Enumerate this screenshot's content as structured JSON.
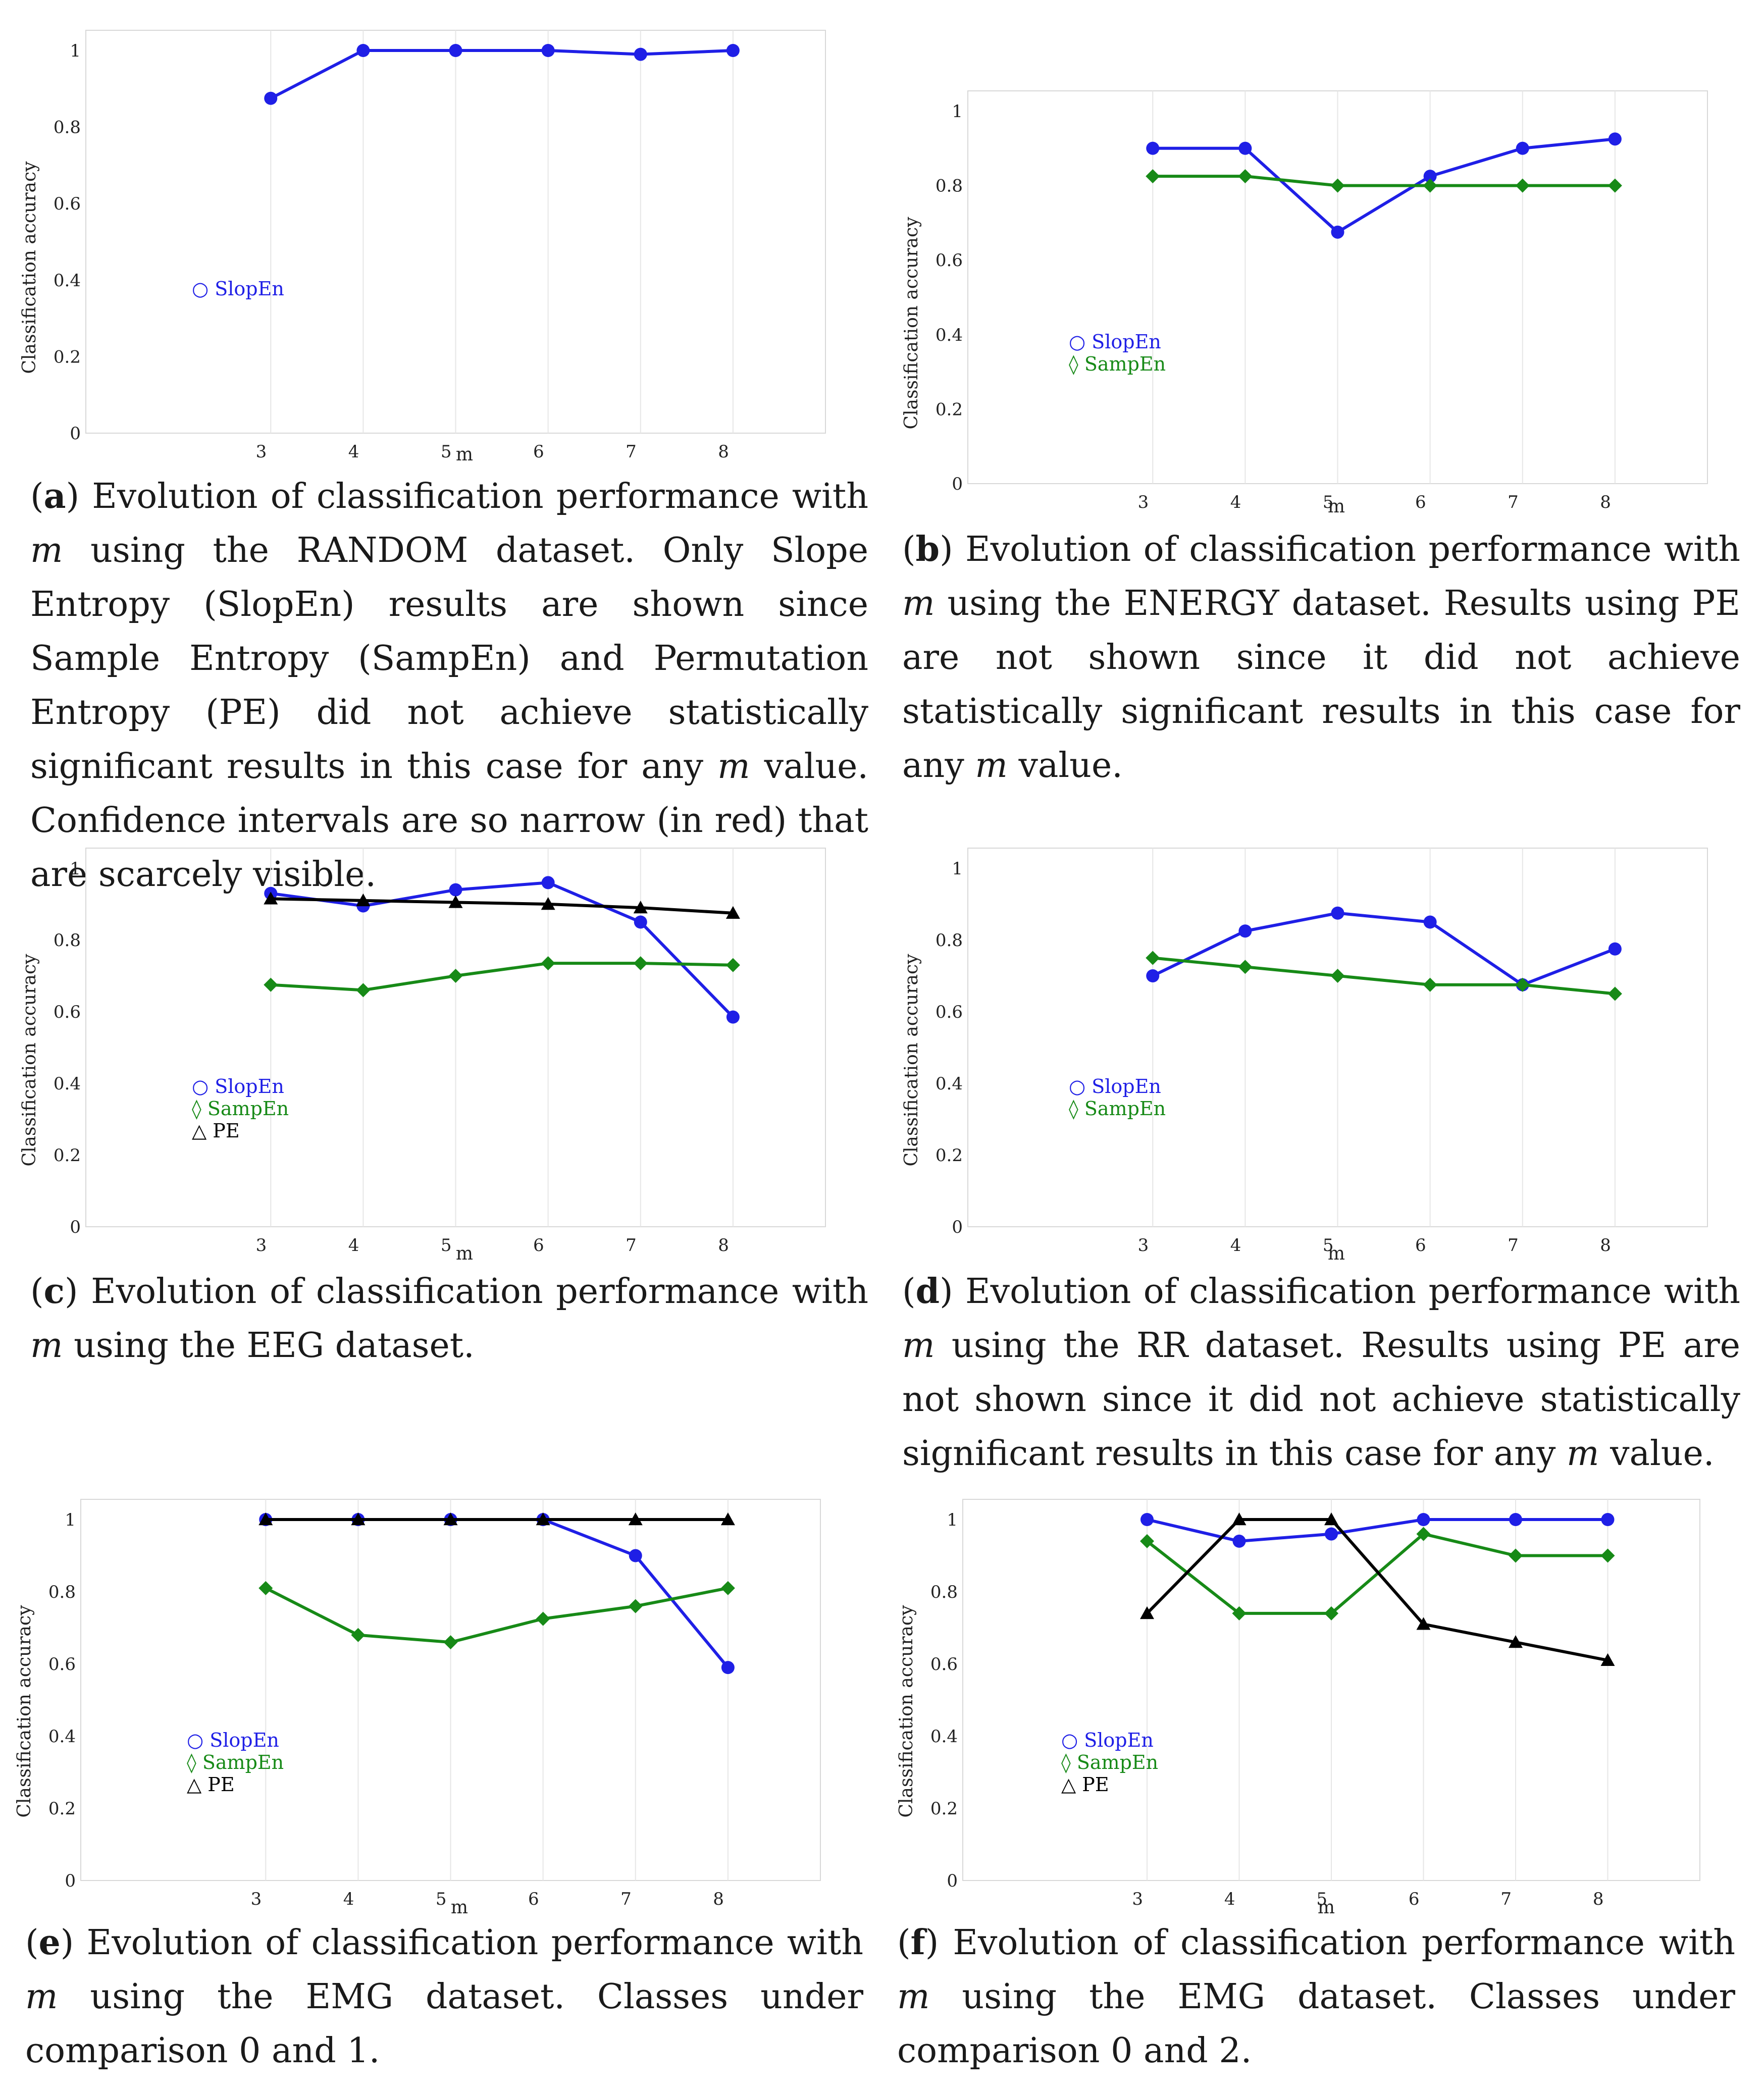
{
  "chart_data": [
    {
      "id": "a",
      "type": "line",
      "xlabel": "m",
      "ylabel": "Classification accuracy",
      "x": [
        3,
        4,
        5,
        6,
        7,
        8
      ],
      "ylim": [
        0,
        1
      ],
      "yticks": [
        "0",
        "0.2",
        "0.4",
        "0.6",
        "0.8",
        "1"
      ],
      "xticks": [
        "3",
        "4",
        "5",
        "6",
        "7",
        "8"
      ],
      "series": [
        {
          "name": "SlopEn",
          "symbol": "○",
          "marker": "circle",
          "color": "#1f1fe6",
          "values": [
            0.875,
            1.0,
            1.0,
            1.0,
            0.99,
            1.0
          ]
        }
      ],
      "caption": {
        "tag": "a",
        "parts": [
          ") Evolution of classification performance with ",
          "m",
          " using the RANDOM dataset. Only Slope Entropy (SlopEn) results are shown since Sample Entropy (SampEn) and Permutation Entropy (PE) did not achieve statistically significant results in this case for any ",
          "m",
          " value. Confidence intervals are so narrow (in red) that are scarcely visible."
        ]
      }
    },
    {
      "id": "b",
      "type": "line",
      "xlabel": "m",
      "ylabel": "Classification accuracy",
      "x": [
        3,
        4,
        5,
        6,
        7,
        8
      ],
      "ylim": [
        0,
        1
      ],
      "yticks": [
        "0",
        "0.2",
        "0.4",
        "0.6",
        "0.8",
        "1"
      ],
      "xticks": [
        "3",
        "4",
        "5",
        "6",
        "7",
        "8"
      ],
      "series": [
        {
          "name": "SlopEn",
          "symbol": "○",
          "marker": "circle",
          "color": "#1f1fe6",
          "values": [
            0.9,
            0.9,
            0.675,
            0.825,
            0.9,
            0.925
          ]
        },
        {
          "name": "SampEn",
          "symbol": "◊",
          "marker": "diamond",
          "color": "#178a17",
          "values": [
            0.825,
            0.825,
            0.8,
            0.8,
            0.8,
            0.8
          ]
        }
      ],
      "caption": {
        "tag": "b",
        "parts": [
          ") Evolution of classification performance with ",
          "m",
          " using the ENERGY dataset. Results using PE are not shown since it did not achieve statistically significant results in this case for any ",
          "m",
          " value."
        ]
      }
    },
    {
      "id": "c",
      "type": "line",
      "xlabel": "m",
      "ylabel": "Classification accuracy",
      "x": [
        3,
        4,
        5,
        6,
        7,
        8
      ],
      "ylim": [
        0,
        1
      ],
      "yticks": [
        "0",
        "0.2",
        "0.4",
        "0.6",
        "0.8",
        "1"
      ],
      "xticks": [
        "3",
        "4",
        "5",
        "6",
        "7",
        "8"
      ],
      "series": [
        {
          "name": "SlopEn",
          "symbol": "○",
          "marker": "circle",
          "color": "#1f1fe6",
          "values": [
            0.93,
            0.895,
            0.94,
            0.96,
            0.85,
            0.585
          ]
        },
        {
          "name": "SampEn",
          "symbol": "◊",
          "marker": "diamond",
          "color": "#178a17",
          "values": [
            0.675,
            0.66,
            0.7,
            0.735,
            0.735,
            0.73
          ]
        },
        {
          "name": "PE",
          "symbol": "△",
          "marker": "triangle",
          "color": "#000000",
          "values": [
            0.915,
            0.91,
            0.905,
            0.9,
            0.89,
            0.875
          ]
        }
      ],
      "caption": {
        "tag": "c",
        "parts": [
          ") Evolution of classification performance with ",
          "m",
          " using the EEG dataset."
        ]
      }
    },
    {
      "id": "d",
      "type": "line",
      "xlabel": "m",
      "ylabel": "Classification accuracy",
      "x": [
        3,
        4,
        5,
        6,
        7,
        8
      ],
      "ylim": [
        0,
        1
      ],
      "yticks": [
        "0",
        "0.2",
        "0.4",
        "0.6",
        "0.8",
        "1"
      ],
      "xticks": [
        "3",
        "4",
        "5",
        "6",
        "7",
        "8"
      ],
      "series": [
        {
          "name": "SlopEn",
          "symbol": "○",
          "marker": "circle",
          "color": "#1f1fe6",
          "values": [
            0.7,
            0.825,
            0.875,
            0.85,
            0.675,
            0.775
          ]
        },
        {
          "name": "SampEn",
          "symbol": "◊",
          "marker": "diamond",
          "color": "#178a17",
          "values": [
            0.75,
            0.725,
            0.7,
            0.675,
            0.675,
            0.65
          ]
        }
      ],
      "caption": {
        "tag": "d",
        "parts": [
          ") Evolution of classification performance with ",
          "m",
          " using the RR dataset. Results using PE are not shown since it did not achieve statistically significant results in this case for any ",
          "m",
          " value."
        ]
      }
    },
    {
      "id": "e",
      "type": "line",
      "xlabel": "m",
      "ylabel": "Classification accuracy",
      "x": [
        3,
        4,
        5,
        6,
        7,
        8
      ],
      "ylim": [
        0,
        1
      ],
      "yticks": [
        "0",
        "0.2",
        "0.4",
        "0.6",
        "0.8",
        "1"
      ],
      "xticks": [
        "3",
        "4",
        "5",
        "6",
        "7",
        "8"
      ],
      "series": [
        {
          "name": "SlopEn",
          "symbol": "○",
          "marker": "circle",
          "color": "#1f1fe6",
          "values": [
            1.0,
            1.0,
            1.0,
            1.0,
            0.9,
            0.59
          ]
        },
        {
          "name": "SampEn",
          "symbol": "◊",
          "marker": "diamond",
          "color": "#178a17",
          "values": [
            0.81,
            0.68,
            0.66,
            0.725,
            0.76,
            0.81
          ]
        },
        {
          "name": "PE",
          "symbol": "△",
          "marker": "triangle",
          "color": "#000000",
          "values": [
            1.0,
            1.0,
            1.0,
            1.0,
            1.0,
            1.0
          ]
        }
      ],
      "caption": {
        "tag": "e",
        "parts": [
          ") Evolution of classification performance with ",
          "m",
          " using the EMG dataset. Classes under comparison 0 and 1."
        ]
      }
    },
    {
      "id": "f",
      "type": "line",
      "xlabel": "m",
      "ylabel": "Classification accuracy",
      "x": [
        3,
        4,
        5,
        6,
        7,
        8
      ],
      "ylim": [
        0,
        1
      ],
      "yticks": [
        "0",
        "0.2",
        "0.4",
        "0.6",
        "0.8",
        "1"
      ],
      "xticks": [
        "3",
        "4",
        "5",
        "6",
        "7",
        "8"
      ],
      "series": [
        {
          "name": "SlopEn",
          "symbol": "○",
          "marker": "circle",
          "color": "#1f1fe6",
          "values": [
            1.0,
            0.94,
            0.96,
            1.0,
            1.0,
            1.0
          ]
        },
        {
          "name": "SampEn",
          "symbol": "◊",
          "marker": "diamond",
          "color": "#178a17",
          "values": [
            0.94,
            0.74,
            0.74,
            0.96,
            0.9,
            0.9
          ]
        },
        {
          "name": "PE",
          "symbol": "△",
          "marker": "triangle",
          "color": "#000000",
          "values": [
            0.74,
            1.0,
            1.0,
            0.71,
            0.66,
            0.61
          ]
        }
      ],
      "caption": {
        "tag": "f",
        "parts": [
          ") Evolution of classification performance with ",
          "m",
          " using the EMG dataset. Classes under comparison 0 and 2."
        ]
      }
    }
  ]
}
